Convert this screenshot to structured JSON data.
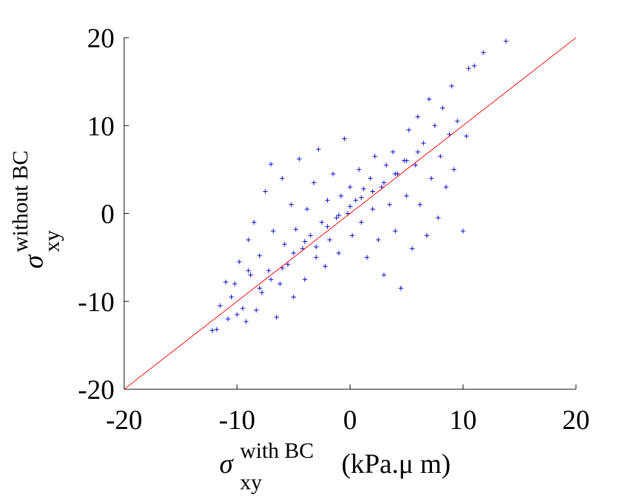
{
  "chart_data": {
    "type": "scatter",
    "xlabel": {
      "symbol": "σ",
      "subscript": "xy",
      "superscript": "with BC",
      "unit": "(kPa.μ m)"
    },
    "ylabel": {
      "symbol": "σ",
      "subscript": "xy",
      "superscript": "without BC"
    },
    "xlim": [
      -20,
      20
    ],
    "ylim": [
      -20,
      20
    ],
    "xticks": [
      -20,
      -10,
      0,
      10,
      20
    ],
    "yticks": [
      -20,
      -10,
      0,
      10,
      20
    ],
    "reference_line": {
      "x": [
        -20,
        20
      ],
      "y": [
        -20,
        20
      ],
      "color": "#ff0000"
    },
    "series": [
      {
        "color": "#0000cc",
        "x": [
          -12.2,
          -11.8,
          -11.5,
          -11,
          -10.8,
          -10.5,
          -10.2,
          -10,
          -9.8,
          -9.5,
          -9.2,
          -9,
          -8.8,
          -8.5,
          -8.3,
          -8,
          -7.8,
          -7.5,
          -7.2,
          -7,
          -6.8,
          -6.5,
          -6.2,
          -6,
          -5.8,
          -5.5,
          -5.2,
          -5,
          -4.8,
          -4.5,
          -4.2,
          -4,
          -3.8,
          -3.5,
          -3.2,
          -3,
          -2.8,
          -2.5,
          -2.2,
          -2,
          -1.8,
          -1.5,
          -1.2,
          -1,
          -0.8,
          -0.5,
          -0.2,
          0,
          0.2,
          0.5,
          0.8,
          1,
          1.2,
          1.5,
          1.8,
          2,
          2.2,
          2.5,
          2.8,
          3,
          3.2,
          3.5,
          3.8,
          4,
          4.2,
          4.5,
          4.8,
          5,
          5.2,
          5.5,
          5.8,
          6,
          6.2,
          6.5,
          6.8,
          7,
          7.2,
          7.5,
          7.8,
          8,
          8.2,
          8.5,
          8.8,
          9,
          9.2,
          9.5,
          10,
          10.3,
          10.5,
          11,
          11.8,
          13.8,
          -6,
          -4,
          -2,
          0,
          2,
          4,
          -3,
          1,
          3,
          5,
          -5,
          -1,
          -7,
          6,
          -9,
          -8
        ],
        "y": [
          -13.3,
          -13.2,
          -10.5,
          -7.8,
          -12,
          -9.5,
          -8,
          -11.5,
          -5.5,
          -10.8,
          -12.3,
          -3,
          -7,
          -1,
          -11,
          -4.8,
          -9,
          2.5,
          -6.5,
          5.6,
          -2,
          -11.8,
          -8,
          4,
          -3.5,
          -5.8,
          1,
          -9.5,
          -1.8,
          6.2,
          -4,
          -7.5,
          0.5,
          -2.5,
          3.5,
          -5,
          7.3,
          -1,
          -6,
          1.5,
          -3,
          4.5,
          -0.5,
          -4.5,
          2,
          8.5,
          0,
          3,
          -2.5,
          1.5,
          5,
          -1,
          2.8,
          -5,
          4,
          0.5,
          6.5,
          -3,
          3,
          -7,
          5.5,
          1,
          7,
          -2,
          4.5,
          -8.5,
          6,
          2,
          9.5,
          -4,
          5.5,
          11,
          1,
          8,
          -2.5,
          13,
          4,
          10,
          -0.5,
          6.5,
          12,
          3,
          9,
          14.5,
          5,
          10.5,
          -2,
          8.8,
          16.5,
          16.8,
          18.3,
          19.6,
          -6.2,
          -3.2,
          -1.5,
          0.8,
          2.5,
          4.5,
          -3.8,
          1.8,
          3.5,
          6,
          -4.5,
          -0.2,
          -7.5,
          7,
          -6.5,
          -8.5
        ]
      }
    ]
  }
}
